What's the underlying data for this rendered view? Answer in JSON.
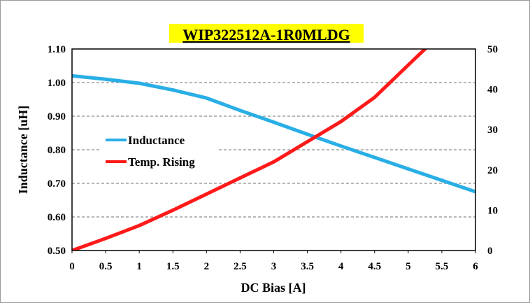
{
  "chart_data": {
    "type": "line",
    "title": "WIP322512A-1R0MLDG",
    "title_highlight": "#ffff00",
    "xlabel": "DC Bias [A]",
    "ylabel": "Inductance [uH]",
    "y2label": "",
    "xlim": [
      0,
      6
    ],
    "ylim": [
      0.5,
      1.1
    ],
    "y2lim": [
      0,
      50
    ],
    "x_ticks": [
      "0",
      "0.5",
      "1",
      "1.5",
      "2",
      "2.5",
      "3",
      "3.5",
      "4",
      "4.5",
      "5",
      "5.5",
      "6"
    ],
    "y_ticks": [
      "0.50",
      "0.60",
      "0.70",
      "0.80",
      "0.90",
      "1.00",
      "1.10"
    ],
    "y2_ticks": [
      "0",
      "10",
      "20",
      "30",
      "40",
      "50"
    ],
    "grid": "horizontal dashed",
    "legend_position": "center-left",
    "series": [
      {
        "name": "Inductance",
        "axis": "left",
        "color": "#29aee6",
        "x": [
          0,
          0.5,
          1,
          1.5,
          2,
          2.5,
          3,
          3.5,
          4,
          4.5,
          5,
          5.5,
          6
        ],
        "y": [
          1.02,
          1.01,
          0.998,
          0.978,
          0.954,
          0.917,
          0.882,
          0.846,
          0.811,
          0.777,
          0.743,
          0.709,
          0.675
        ]
      },
      {
        "name": "Temp. Rising",
        "axis": "right",
        "color": "#ff1a1a",
        "x": [
          0,
          0.5,
          1,
          1.5,
          2,
          2.5,
          3,
          3.5,
          4,
          4.5,
          5,
          5.25
        ],
        "y": [
          0,
          3,
          6.2,
          10,
          14,
          18,
          22,
          27,
          32,
          38,
          46,
          50
        ]
      }
    ]
  }
}
